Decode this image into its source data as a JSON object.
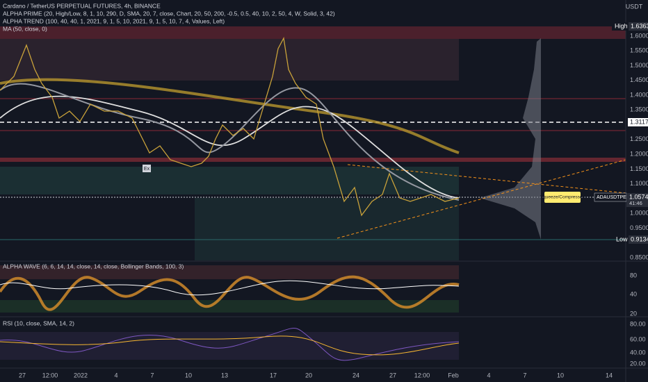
{
  "header": {
    "symbol": "Cardano / TetherUS PERPETUAL FUTURES, 4h, BINANCE",
    "indicators": [
      "ALPHA PRIME (20, High/Low, 8, 1, 10, 290, D, SMA, 20, 7, close, Chart, 20, 50, 200, -0.5, 0.5, 40, 10, 2, 50, 4, W, Solid, 3, 42)",
      "ALPHA TREND (100, 40, 40, 1, 2021, 9, 1, 5, 10, 2021, 9, 1, 5, 10, 7, 4, Values, Left)",
      "MA (50, close, 0)"
    ],
    "currency": "USDT"
  },
  "price_axis": {
    "ticks": [
      "1.6000",
      "1.5500",
      "1.5000",
      "1.4500",
      "1.4000",
      "1.3500",
      "1.2500",
      "1.2000",
      "1.1500",
      "1.1000",
      "1.0000",
      "0.9500",
      "0.8500"
    ],
    "high": {
      "label": "High",
      "value": "1.6363"
    },
    "level": "1.3117",
    "current": {
      "symbol": "ADAUSDTPERP",
      "price": "1.0574",
      "countdown": "41:46"
    },
    "low": {
      "label": "Low",
      "value": "0.9134"
    }
  },
  "annotations": {
    "squeeze": "Squeeze/Compressed",
    "exit": "Ex"
  },
  "wave_pane": {
    "title": "ALPHA WAVE (6, 6, 14, 14, close, 14, close, Bollinger Bands, 100, 3)",
    "ticks": [
      "80",
      "40",
      "20"
    ]
  },
  "rsi_pane": {
    "title": "RSI (10, close, SMA, 14, 2)",
    "ticks": [
      "80.00",
      "60.00",
      "40.00",
      "20.00"
    ]
  },
  "time_axis": [
    "27",
    "12:00",
    "2022",
    "4",
    "7",
    "10",
    "13",
    "17",
    "20",
    "24",
    "27",
    "12:00",
    "Feb",
    "4",
    "7",
    "10",
    "14"
  ]
}
